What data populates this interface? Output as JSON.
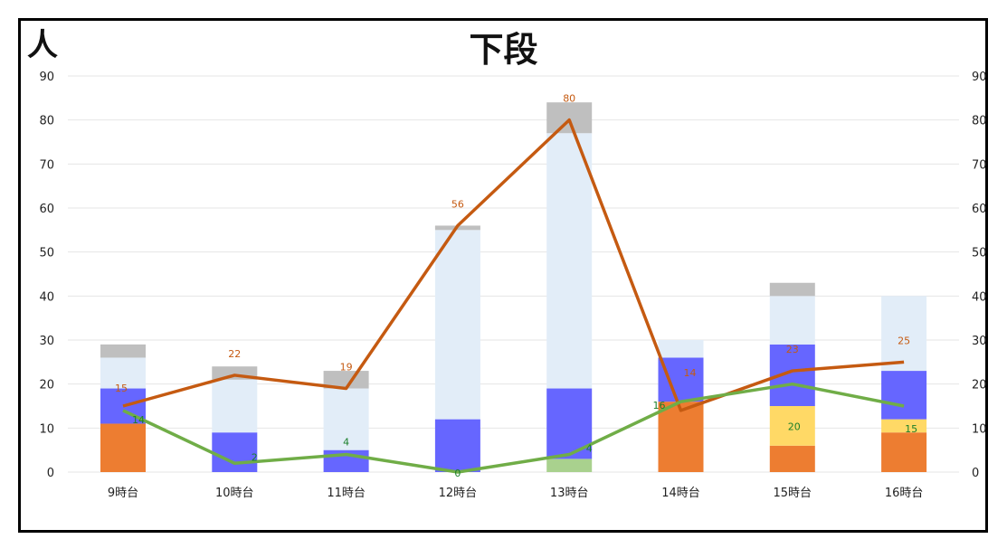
{
  "chart_data": {
    "type": "bar",
    "title": "下段",
    "ylabel": "人",
    "categories": [
      "9時台",
      "10時台",
      "11時台",
      "12時台",
      "13時台",
      "14時台",
      "15時台",
      "16時台"
    ],
    "ylim": [
      0,
      90
    ],
    "yticks": [
      "0",
      "10",
      "20",
      "30",
      "40",
      "50",
      "60",
      "70",
      "80",
      "90"
    ],
    "y2ticks": [
      "0",
      "10",
      "20",
      "30",
      "40",
      "50",
      "60",
      "70",
      "80",
      "90"
    ],
    "grid": true,
    "stacked_series": [
      {
        "color": "#ED7D31",
        "values": [
          11,
          0,
          0,
          0,
          0,
          16,
          6,
          9
        ]
      },
      {
        "color": "#FFD966",
        "values": [
          0,
          0,
          0,
          0,
          0,
          0,
          9,
          3
        ]
      },
      {
        "color": "#A9D18E",
        "values": [
          0,
          0,
          0,
          0,
          3,
          0,
          0,
          0
        ]
      },
      {
        "color": "#6666FF",
        "values": [
          8,
          9,
          5,
          12,
          16,
          10,
          14,
          11
        ]
      },
      {
        "color": "#E2EDF8",
        "values": [
          7,
          12,
          14,
          43,
          58,
          4,
          11,
          17
        ]
      },
      {
        "color": "#BFBFBF",
        "values": [
          3,
          3,
          4,
          1,
          7,
          0,
          3,
          0
        ]
      }
    ],
    "line_series": [
      {
        "color": "#C55A11",
        "values": [
          15,
          22,
          19,
          56,
          80,
          14,
          23,
          25
        ],
        "labels": [
          "15",
          "22",
          "19",
          "56",
          "80",
          "14",
          "23",
          "25"
        ]
      },
      {
        "color": "#70AD47",
        "label_color": "#1A7F2A",
        "values": [
          14,
          2,
          4,
          0,
          4,
          16,
          20,
          15
        ],
        "labels": [
          "14",
          "2",
          "4",
          "0",
          "4",
          "16",
          "20",
          "15"
        ]
      }
    ]
  }
}
